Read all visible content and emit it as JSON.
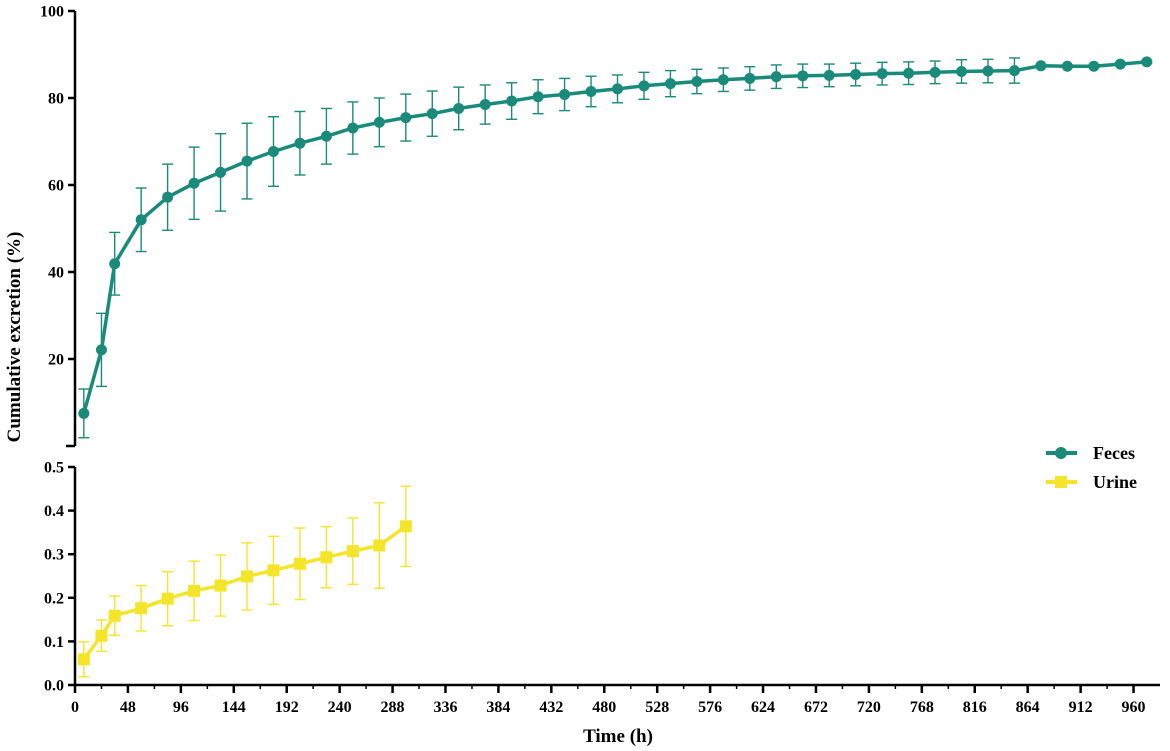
{
  "chart_data": {
    "type": "line",
    "ylabel": "Cumulative excretion (%)",
    "xlabel": "Time (h)",
    "x_range": [
      0,
      984
    ],
    "x_ticks": [
      0,
      48,
      96,
      144,
      192,
      240,
      288,
      336,
      384,
      432,
      480,
      528,
      576,
      624,
      672,
      720,
      768,
      816,
      864,
      912,
      960
    ],
    "broken_y_axis": true,
    "upper_y_range": [
      0,
      100
    ],
    "upper_y_ticks": [
      20,
      40,
      60,
      80,
      100
    ],
    "lower_y_range": [
      0,
      0.5
    ],
    "lower_y_ticks": [
      0.0,
      0.1,
      0.2,
      0.3,
      0.4,
      0.5
    ],
    "lower_y_tick_labels": [
      "0.0",
      "0.1",
      "0.2",
      "0.3",
      "0.4",
      "0.5"
    ],
    "legend_position": "right",
    "series": [
      {
        "name": "Feces",
        "color": "#1a8a7a",
        "marker": "circle",
        "panel": "upper",
        "x": [
          8,
          24,
          36,
          60,
          84,
          108,
          132,
          156,
          180,
          204,
          228,
          252,
          276,
          300,
          324,
          348,
          372,
          396,
          420,
          444,
          468,
          492,
          516,
          540,
          564,
          588,
          612,
          636,
          660,
          684,
          708,
          732,
          756,
          780,
          804,
          828,
          852,
          876,
          900,
          924,
          948,
          972
        ],
        "y": [
          7.5,
          22.1,
          41.9,
          52.0,
          57.2,
          60.4,
          62.9,
          65.5,
          67.7,
          69.6,
          71.2,
          73.1,
          74.4,
          75.5,
          76.4,
          77.6,
          78.5,
          79.3,
          80.3,
          80.8,
          81.5,
          82.1,
          82.8,
          83.3,
          83.8,
          84.2,
          84.5,
          84.9,
          85.1,
          85.2,
          85.4,
          85.6,
          85.7,
          85.9,
          86.1,
          86.2,
          86.3,
          87.4,
          87.3,
          87.3,
          87.8,
          88.3
        ],
        "error": [
          5.6,
          8.4,
          7.2,
          7.3,
          7.6,
          8.3,
          8.9,
          8.7,
          8.0,
          7.3,
          6.4,
          6.0,
          5.6,
          5.4,
          5.2,
          4.9,
          4.5,
          4.2,
          3.9,
          3.7,
          3.5,
          3.2,
          3.1,
          3.0,
          2.8,
          2.7,
          2.7,
          2.7,
          2.7,
          2.6,
          2.6,
          2.6,
          2.6,
          2.6,
          2.7,
          2.7,
          2.9,
          0.3,
          0.3,
          0.3,
          0.3,
          0.3
        ]
      },
      {
        "name": "Urine",
        "color": "#f5e52a",
        "marker": "square",
        "panel": "lower",
        "x": [
          8,
          24,
          36,
          60,
          84,
          108,
          132,
          156,
          180,
          204,
          228,
          252,
          276,
          300
        ],
        "y": [
          0.059,
          0.113,
          0.159,
          0.176,
          0.198,
          0.216,
          0.228,
          0.249,
          0.263,
          0.278,
          0.293,
          0.307,
          0.32,
          0.364
        ],
        "error": [
          0.04,
          0.036,
          0.045,
          0.052,
          0.062,
          0.068,
          0.07,
          0.077,
          0.078,
          0.082,
          0.07,
          0.076,
          0.098,
          0.092
        ]
      }
    ]
  }
}
